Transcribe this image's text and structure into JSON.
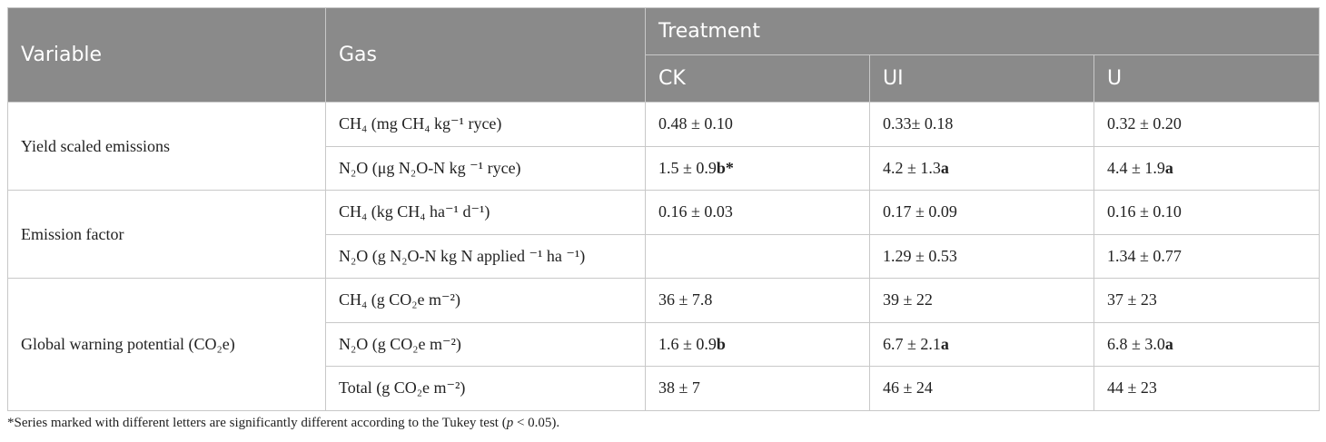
{
  "header": {
    "variable": "Variable",
    "gas": "Gas",
    "treatment": "Treatment",
    "ck": "CK",
    "ui": "UI",
    "u": "U"
  },
  "groups": {
    "yield": "Yield scaled emissions",
    "emission": "Emission factor",
    "gwp": "Global warning potential (CO₂e)"
  },
  "gas": {
    "r1": "CH₄ (mg CH₄ kg⁻¹ ryce)",
    "r2": "N₂O (μg N₂O-N kg ⁻¹ ryce)",
    "r3": "CH₄ (kg CH₄ ha⁻¹ d⁻¹)",
    "r4": "N₂O (g N₂O-N kg N applied ⁻¹ ha ⁻¹)",
    "r5": "CH₄ (g CO₂e m⁻²)",
    "r6": "N₂O (g CO₂e m⁻²)",
    "r7": "Total (g CO₂e m⁻²)"
  },
  "values": {
    "r1": {
      "ck": "0.48 ± 0.10",
      "ui": "0.33± 0.18",
      "u": "0.32 ± 0.20"
    },
    "r2": {
      "ck": "1.5 ± 0.9",
      "ck_letter": "b*",
      "ui": "4.2 ± 1.3",
      "ui_letter": "a",
      "u": "4.4 ± 1.9",
      "u_letter": "a"
    },
    "r3": {
      "ck": "0.16 ± 0.03",
      "ui": "0.17 ± 0.09",
      "u": "0.16 ± 0.10"
    },
    "r4": {
      "ck": "",
      "ui": "1.29 ± 0.53",
      "u": "1.34 ± 0.77"
    },
    "r5": {
      "ck": "36 ± 7.8",
      "ui": "39 ± 22",
      "u": "37 ± 23"
    },
    "r6": {
      "ck": "1.6 ± 0.9",
      "ck_letter": "b",
      "ui": "6.7 ± 2.1",
      "ui_letter": "a",
      "u": "6.8 ± 3.0",
      "u_letter": "a"
    },
    "r7": {
      "ck": "38 ± 7",
      "ui": "46 ± 24",
      "u": "44 ± 23"
    }
  },
  "footnote": {
    "before": "*Series marked with different letters are significantly different according to the Tukey test (",
    "p": "p",
    "after": " < 0.05)."
  }
}
